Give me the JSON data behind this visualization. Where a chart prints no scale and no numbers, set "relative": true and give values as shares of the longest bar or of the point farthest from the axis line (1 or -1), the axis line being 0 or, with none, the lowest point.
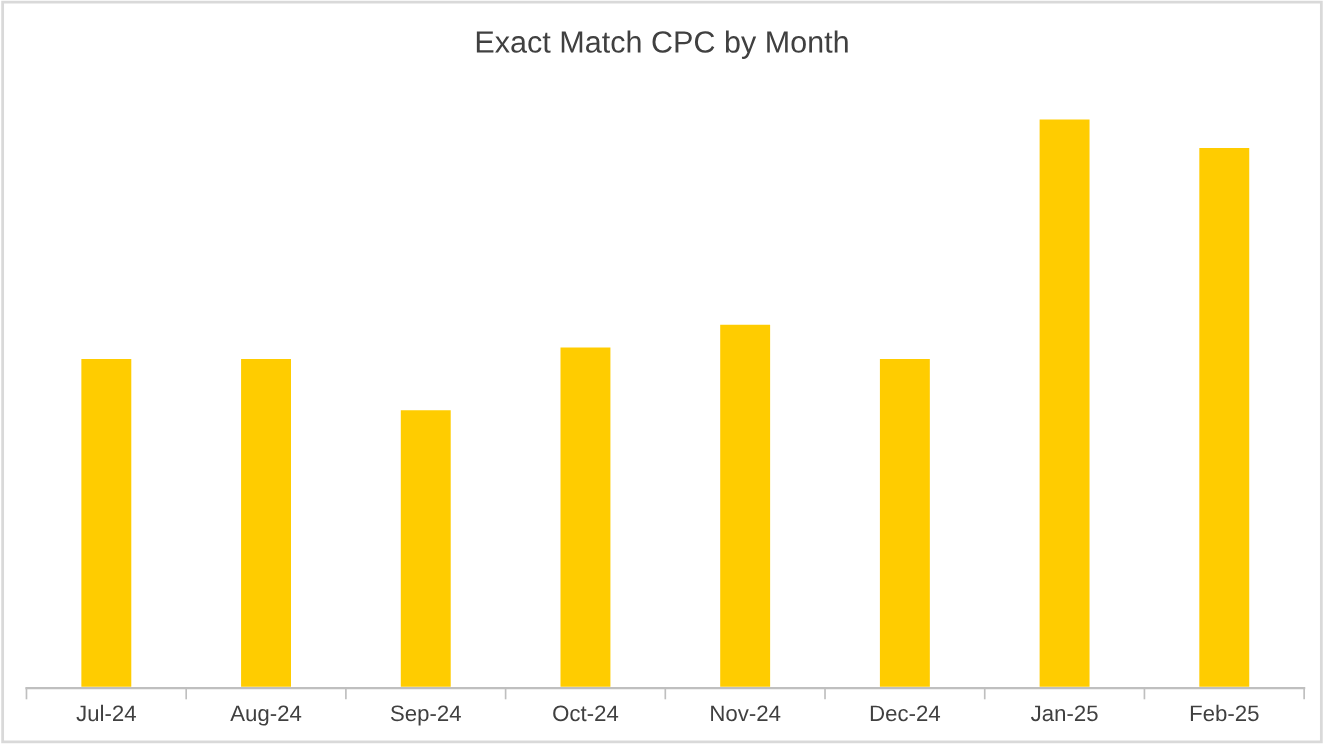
{
  "chart_data": {
    "type": "bar",
    "title": "Exact Match CPC by Month",
    "relative": true,
    "categories": [
      "Jul-24",
      "Aug-24",
      "Sep-24",
      "Oct-24",
      "Nov-24",
      "Dec-24",
      "Jan-25",
      "Feb-25"
    ],
    "values": [
      0.58,
      0.58,
      0.49,
      0.6,
      0.64,
      0.58,
      1,
      0.95
    ],
    "color": "#ffcc00",
    "grid": false,
    "legend": false
  }
}
